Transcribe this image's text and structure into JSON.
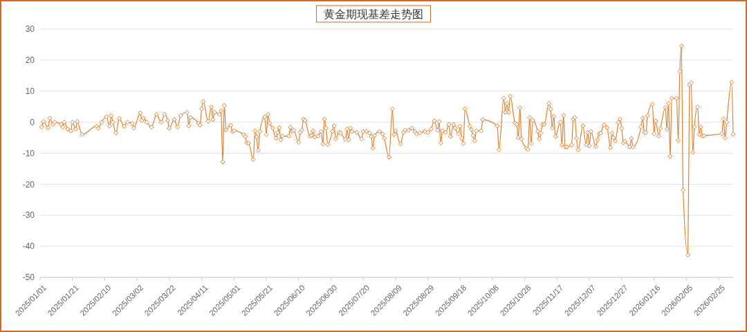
{
  "chart_data": {
    "type": "line",
    "title": "黄金期现基差走势图",
    "xlim": [
      "2025-01-01",
      "2026-03-06"
    ],
    "ylim": [
      -50,
      30
    ],
    "yticks": [
      -50,
      -40,
      -30,
      -20,
      -10,
      0,
      10,
      20,
      30
    ],
    "xticks": [
      {
        "value": "2025-01-01",
        "label": "2025/01/01"
      },
      {
        "value": "2025-01-21",
        "label": "2025/01/21"
      },
      {
        "value": "2025-02-10",
        "label": "2025/02/10"
      },
      {
        "value": "2025-03-02",
        "label": "2025/03/02"
      },
      {
        "value": "2025-03-22",
        "label": "2025/03/22"
      },
      {
        "value": "2025-04-11",
        "label": "2025/04/11"
      },
      {
        "value": "2025-05-01",
        "label": "2025/05/01"
      },
      {
        "value": "2025-05-21",
        "label": "2025/05/21"
      },
      {
        "value": "2025-06-10",
        "label": "2025/06/10"
      },
      {
        "value": "2025-06-30",
        "label": "2025/06/30"
      },
      {
        "value": "2025-07-20",
        "label": "2025/07/20"
      },
      {
        "value": "2025-08-09",
        "label": "2025/08/09"
      },
      {
        "value": "2025-08-29",
        "label": "2025/08/29"
      },
      {
        "value": "2025-09-18",
        "label": "2025/09/18"
      },
      {
        "value": "2025-10-08",
        "label": "2025/10/08"
      },
      {
        "value": "2025-10-28",
        "label": "2025/10/28"
      },
      {
        "value": "2025-11-17",
        "label": "2025/11/17"
      },
      {
        "value": "2025-12-07",
        "label": "2025/12/07"
      },
      {
        "value": "2025-12-27",
        "label": "2025/12/27"
      },
      {
        "value": "2026-01-16",
        "label": "2026/01/16"
      },
      {
        "value": "2026-02-05",
        "label": "2026/02/05"
      },
      {
        "value": "2026-02-25",
        "label": "2026/02/25"
      }
    ],
    "grid": "y",
    "marker": "diamond",
    "line_style": "solid",
    "x": [
      "2025-01-02",
      "2025-01-03",
      "2025-01-06",
      "2025-01-07",
      "2025-01-09",
      "2025-01-10",
      "2025-01-14",
      "2025-01-15",
      "2025-01-16",
      "2025-01-18",
      "2025-01-20",
      "2025-01-21",
      "2025-01-23",
      "2025-01-24",
      "2025-01-27",
      "2025-02-05",
      "2025-02-06",
      "2025-02-08",
      "2025-02-11",
      "2025-02-13",
      "2025-02-14",
      "2025-02-15",
      "2025-02-17",
      "2025-02-19",
      "2025-02-22",
      "2025-02-24",
      "2025-02-27",
      "2025-02-28",
      "2025-03-04",
      "2025-03-05",
      "2025-03-06",
      "2025-03-08",
      "2025-03-11",
      "2025-03-14",
      "2025-03-17",
      "2025-03-19",
      "2025-03-21",
      "2025-03-22",
      "2025-03-25",
      "2025-03-27",
      "2025-03-29",
      "2025-04-02",
      "2025-04-03",
      "2025-04-04",
      "2025-04-09",
      "2025-04-10",
      "2025-04-11",
      "2025-04-12",
      "2025-04-15",
      "2025-04-17",
      "2025-04-18",
      "2025-04-19",
      "2025-04-22",
      "2025-04-23",
      "2025-04-24",
      "2025-04-25",
      "2025-04-26",
      "2025-04-29",
      "2025-04-30",
      "2025-05-01",
      "2025-05-07",
      "2025-05-08",
      "2025-05-09",
      "2025-05-10",
      "2025-05-13",
      "2025-05-14",
      "2025-05-15",
      "2025-05-16",
      "2025-05-17",
      "2025-05-20",
      "2025-05-21",
      "2025-05-22",
      "2025-05-23",
      "2025-05-25",
      "2025-05-27",
      "2025-05-28",
      "2025-05-29",
      "2025-05-30",
      "2025-05-31",
      "2025-06-04",
      "2025-06-05",
      "2025-06-06",
      "2025-06-07",
      "2025-06-10",
      "2025-06-11",
      "2025-06-12",
      "2025-06-13",
      "2025-06-14",
      "2025-06-17",
      "2025-06-18",
      "2025-06-19",
      "2025-06-20",
      "2025-06-22",
      "2025-06-24",
      "2025-06-25",
      "2025-06-26",
      "2025-06-27",
      "2025-06-28",
      "2025-07-01",
      "2025-07-02",
      "2025-07-03",
      "2025-07-05",
      "2025-07-06",
      "2025-07-09",
      "2025-07-10",
      "2025-07-11",
      "2025-07-12",
      "2025-07-13",
      "2025-07-16",
      "2025-07-19",
      "2025-07-20",
      "2025-07-22",
      "2025-07-24",
      "2025-07-25",
      "2025-07-26",
      "2025-07-27",
      "2025-07-30",
      "2025-08-01",
      "2025-08-02",
      "2025-08-05",
      "2025-08-07",
      "2025-08-08",
      "2025-08-09",
      "2025-08-12",
      "2025-08-14",
      "2025-08-15",
      "2025-08-17",
      "2025-08-19",
      "2025-08-21",
      "2025-08-22",
      "2025-08-24",
      "2025-08-27",
      "2025-08-29",
      "2025-08-31",
      "2025-09-02",
      "2025-09-04",
      "2025-09-05",
      "2025-09-06",
      "2025-09-07",
      "2025-09-09",
      "2025-09-11",
      "2025-09-12",
      "2025-09-14",
      "2025-09-15",
      "2025-09-17",
      "2025-09-18",
      "2025-09-19",
      "2025-09-20",
      "2025-09-21",
      "2025-09-24",
      "2025-09-25",
      "2025-09-26",
      "2025-09-27",
      "2025-09-28",
      "2025-10-01",
      "2025-10-02",
      "2025-10-11",
      "2025-10-12",
      "2025-10-15",
      "2025-10-16",
      "2025-10-17",
      "2025-10-18",
      "2025-10-19",
      "2025-10-22",
      "2025-10-23",
      "2025-10-24",
      "2025-10-25",
      "2025-10-26",
      "2025-10-29",
      "2025-10-30",
      "2025-10-31",
      "2025-11-01",
      "2025-11-02",
      "2025-11-05",
      "2025-11-06",
      "2025-11-07",
      "2025-11-08",
      "2025-11-09",
      "2025-11-12",
      "2025-11-13",
      "2025-11-14",
      "2025-11-15",
      "2025-11-16",
      "2025-11-19",
      "2025-11-20",
      "2025-11-21",
      "2025-11-22",
      "2025-11-23",
      "2025-11-26",
      "2025-11-27",
      "2025-11-28",
      "2025-11-29",
      "2025-11-30",
      "2025-12-03",
      "2025-12-05",
      "2025-12-06",
      "2025-12-07",
      "2025-12-08",
      "2025-12-11",
      "2025-12-12",
      "2025-12-13",
      "2025-12-14",
      "2025-12-16",
      "2025-12-18",
      "2025-12-20",
      "2025-12-21",
      "2025-12-22",
      "2025-12-23",
      "2025-12-25",
      "2025-12-26",
      "2025-12-27",
      "2025-12-28",
      "2025-12-29",
      "2026-01-01",
      "2026-01-02",
      "2026-01-03",
      "2026-01-08",
      "2026-01-09",
      "2026-01-10",
      "2026-01-11",
      "2026-01-12",
      "2026-01-15",
      "2026-01-16",
      "2026-01-17",
      "2026-01-19",
      "2026-01-20",
      "2026-01-23",
      "2026-01-24",
      "2026-01-25",
      "2026-01-26",
      "2026-01-27",
      "2026-01-30",
      "2026-01-31",
      "2026-02-01",
      "2026-02-02",
      "2026-02-03",
      "2026-02-06",
      "2026-02-07",
      "2026-02-08",
      "2026-02-09",
      "2026-02-10",
      "2026-02-12",
      "2026-02-13",
      "2026-02-14",
      "2026-02-15",
      "2026-02-16",
      "2026-02-27",
      "2026-02-28",
      "2026-03-01",
      "2026-03-02",
      "2026-03-05",
      "2026-03-06"
    ],
    "series": [
      {
        "color": "#e07f2e",
        "values": [
          -1.5,
          0.2,
          -1.8,
          1.3,
          -0.7,
          0,
          -0.7,
          -1.6,
          0,
          -2.2,
          -2.8,
          0,
          -2.2,
          0.2,
          -4.0,
          -1.3,
          -2.0,
          0,
          1.7,
          -1.3,
          2.1,
          0,
          -3.5,
          1.2,
          -1.3,
          0,
          -0.4,
          -1.9,
          3.0,
          0.6,
          1.3,
          0,
          -1.6,
          2.5,
          0,
          2.5,
          0.6,
          -1.9,
          0.8,
          -1.6,
          2.1,
          3.2,
          -1.2,
          1.5,
          -0.3,
          -1.0,
          4.3,
          6.7,
          0.3,
          4.9,
          0.8,
          3.2,
          2.5,
          3.6,
          -12.8,
          5.4,
          -2.4,
          -1.0,
          -3.1,
          -2.8,
          -4.0,
          -4.6,
          -6.7,
          -6.7,
          -12.1,
          -2.8,
          -4.8,
          -9.1,
          -3.0,
          1.7,
          -4.0,
          2.5,
          -0.3,
          -1.9,
          -5.2,
          -3.3,
          -1.8,
          -5.7,
          -4.5,
          -4.5,
          -1.6,
          -3.0,
          -2.6,
          -6.5,
          -3.3,
          -2.6,
          1.0,
          0.6,
          -4.5,
          -4.3,
          -2.8,
          -4.8,
          -4.5,
          -3.0,
          -7.0,
          1.0,
          -1.9,
          -7.2,
          -3.0,
          -1.2,
          -5.4,
          -3.3,
          -3.5,
          -5.5,
          -2.2,
          -5.7,
          -1.9,
          -3.0,
          -3.3,
          -5.4,
          -3.0,
          -3.0,
          -3.5,
          -4.6,
          -8.4,
          -4.3,
          -3.0,
          -3.8,
          -5.2,
          -11.3,
          4.3,
          -4.0,
          -2.8,
          -7.0,
          -3.3,
          -2.6,
          -2.6,
          -1.9,
          -3.0,
          -3.8,
          -3.5,
          -3.0,
          -3.3,
          -2.2,
          0.4,
          -2.6,
          0.2,
          -6.7,
          -2.8,
          -3.3,
          -0.7,
          -4.6,
          -0.7,
          -1.9,
          -3.8,
          -1.3,
          -5.2,
          -6.9,
          4.3,
          -1.3,
          -2.4,
          -4.3,
          -6.0,
          -2.8,
          -2.8,
          0.8,
          -1.2,
          -8.9,
          7.7,
          3.2,
          6.0,
          3.2,
          8.4,
          -0.3,
          -0.7,
          -5.0,
          4.7,
          -5.4,
          -8.4,
          -8.8,
          1.5,
          -6.9,
          0.6,
          -3.0,
          -5.4,
          -3.5,
          -0.7,
          -0.7,
          6.0,
          4.2,
          -1.9,
          1.9,
          -4.6,
          0,
          -7.3,
          2.2,
          -8.0,
          -8.0,
          -7.3,
          1.0,
          1.5,
          -5.2,
          -8.9,
          -1.2,
          -7.3,
          -3.3,
          -7.6,
          -3.0,
          -7.9,
          -5.7,
          -3.7,
          -3.5,
          -0.9,
          -1.8,
          -8.2,
          -3.5,
          -5.0,
          -6.1,
          -0.1,
          1.0,
          -2.0,
          -6.7,
          -6.1,
          -8.0,
          -5.2,
          -8.0,
          -1.5,
          1.3,
          -3.3,
          -3.3,
          2.1,
          5.8,
          -3.7,
          0.4,
          -4.5,
          -2.0,
          4.7,
          -2.2,
          6.0,
          -11.0,
          7.7,
          7.7,
          -5.9,
          16.3,
          24.6,
          -21.9,
          -42.8,
          12.1,
          12.7,
          -9.7,
          -1.5,
          4.9,
          -4.0,
          -1.6,
          -4.5,
          -4.4,
          -3.7,
          1.1,
          -5.1,
          0,
          12.9,
          -3.9
        ]
      }
    ]
  }
}
